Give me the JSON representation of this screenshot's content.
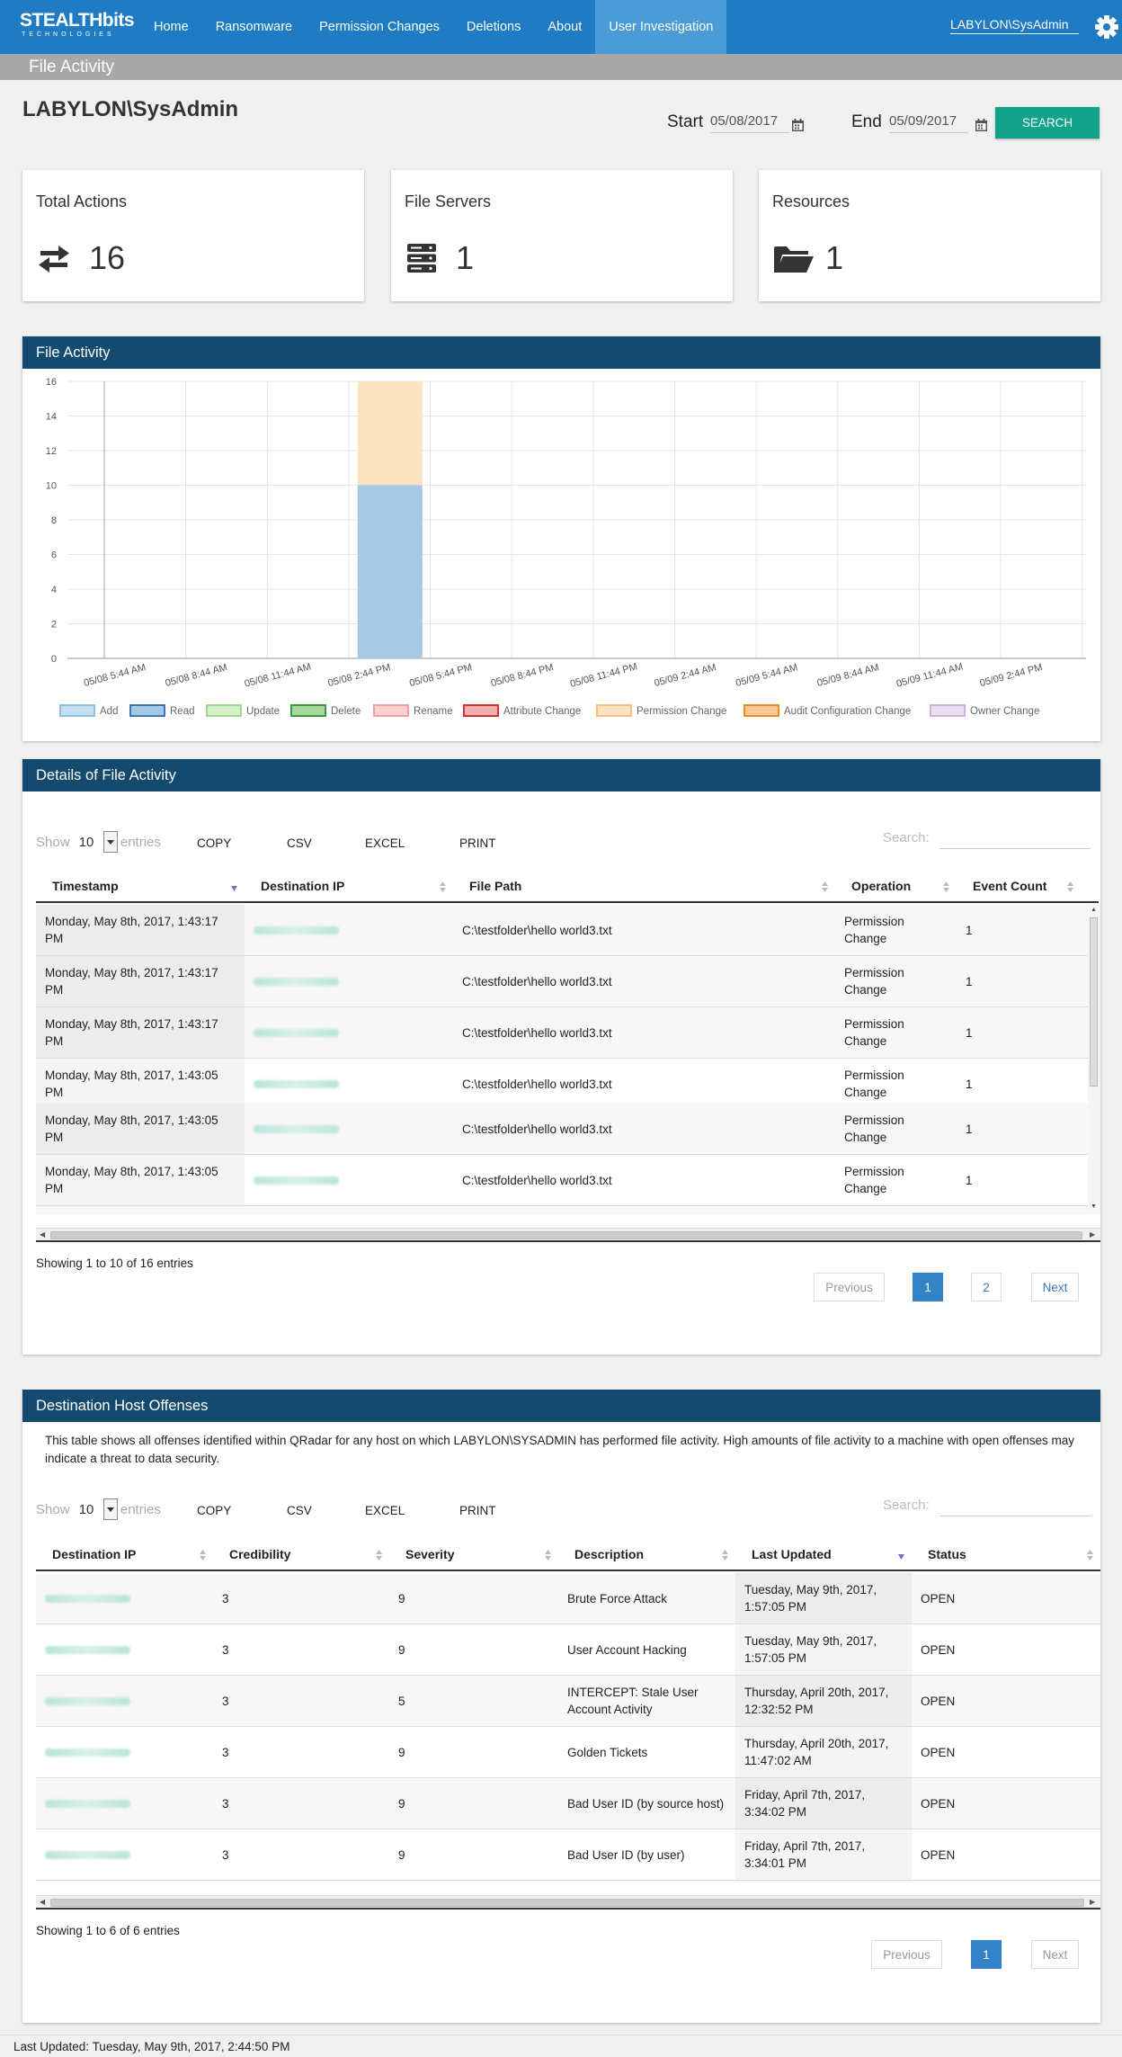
{
  "nav": {
    "logo_main": "STEALTHbits",
    "logo_sub": "TECHNOLOGIES",
    "items": [
      {
        "label": "Home"
      },
      {
        "label": "Ransomware"
      },
      {
        "label": "Permission Changes"
      },
      {
        "label": "Deletions"
      },
      {
        "label": "About"
      },
      {
        "label": "User Investigation",
        "active": true
      }
    ],
    "user": "LABYLON\\SysAdmin",
    "settings_icon": "gear-icon"
  },
  "subheader": {
    "title": "File Activity"
  },
  "header": {
    "user_title": "LABYLON\\SysAdmin",
    "start_label": "Start",
    "start_value": "05/08/2017",
    "end_label": "End",
    "end_value": "05/09/2017",
    "search_label": "SEARCH"
  },
  "stats": {
    "total_actions": {
      "label": "Total Actions",
      "value": "16",
      "icon": "exchange-icon"
    },
    "file_servers": {
      "label": "File Servers",
      "value": "1",
      "icon": "server-icon"
    },
    "resources": {
      "label": "Resources",
      "value": "1",
      "icon": "folder-open-icon"
    }
  },
  "file_activity_panel": {
    "title": "File Activity"
  },
  "chart_data": {
    "type": "bar",
    "stacked": true,
    "categories": [
      "05/08 5:44 AM",
      "05/08 8:44 AM",
      "05/08 11:44 AM",
      "05/08 2:44 PM",
      "05/08 5:44 PM",
      "05/08 8:44 PM",
      "05/08 11:44 PM",
      "05/09 2:44 AM",
      "05/09 5:44 AM",
      "05/09 8:44 AM",
      "05/09 11:44 AM",
      "05/09 2:44 PM"
    ],
    "series": [
      {
        "name": "Add",
        "color": "#c6dff0",
        "border": "#8fbfe0",
        "values": [
          0,
          0,
          0,
          0,
          0,
          0,
          0,
          0,
          0,
          0,
          0,
          0
        ]
      },
      {
        "name": "Read",
        "color": "#a6c8e2",
        "border": "#3a78b5",
        "values": [
          0,
          0,
          0,
          10,
          0,
          0,
          0,
          0,
          0,
          0,
          0,
          0
        ]
      },
      {
        "name": "Update",
        "color": "#d5f0c8",
        "border": "#9fd68a",
        "values": [
          0,
          0,
          0,
          0,
          0,
          0,
          0,
          0,
          0,
          0,
          0,
          0
        ]
      },
      {
        "name": "Delete",
        "color": "#a8d8a0",
        "border": "#3c9a3c",
        "values": [
          0,
          0,
          0,
          0,
          0,
          0,
          0,
          0,
          0,
          0,
          0,
          0
        ]
      },
      {
        "name": "Rename",
        "color": "#f8d0d0",
        "border": "#f0a0a0",
        "values": [
          0,
          0,
          0,
          0,
          0,
          0,
          0,
          0,
          0,
          0,
          0,
          0
        ]
      },
      {
        "name": "Attribute Change",
        "color": "#f0b0b0",
        "border": "#d43030",
        "values": [
          0,
          0,
          0,
          0,
          0,
          0,
          0,
          0,
          0,
          0,
          0,
          0
        ]
      },
      {
        "name": "Permission Change",
        "color": "#fbe2c0",
        "border": "#f5c080",
        "values": [
          0,
          0,
          0,
          6,
          0,
          0,
          0,
          0,
          0,
          0,
          0,
          0
        ]
      },
      {
        "name": "Audit Configuration Change",
        "color": "#f8c898",
        "border": "#ee8a20",
        "values": [
          0,
          0,
          0,
          0,
          0,
          0,
          0,
          0,
          0,
          0,
          0,
          0
        ]
      },
      {
        "name": "Owner Change",
        "color": "#ecdcf0",
        "border": "#cfb2dc",
        "values": [
          0,
          0,
          0,
          0,
          0,
          0,
          0,
          0,
          0,
          0,
          0,
          0
        ]
      }
    ],
    "yticks": [
      "0",
      "2",
      "4",
      "6",
      "8",
      "10",
      "12",
      "14",
      "16"
    ],
    "ylim": [
      0,
      16
    ],
    "grid": true,
    "legend_position": "bottom"
  },
  "details_panel": {
    "title": "Details of File Activity",
    "show_label": "Show",
    "show_value": "10",
    "entries_label": "entries",
    "tools": [
      "COPY",
      "CSV",
      "EXCEL",
      "PRINT"
    ],
    "search_label": "Search:",
    "columns": [
      "Timestamp",
      "Destination IP",
      "File Path",
      "Operation",
      "Event Count"
    ],
    "rows": [
      {
        "timestamp": "Monday, May 8th, 2017, 1:43:17 PM",
        "path": "C:\\testfolder\\hello world3.txt",
        "operation": "Permission Change",
        "count": "1"
      },
      {
        "timestamp": "Monday, May 8th, 2017, 1:43:17 PM",
        "path": "C:\\testfolder\\hello world3.txt",
        "operation": "Permission Change",
        "count": "1"
      },
      {
        "timestamp": "Monday, May 8th, 2017, 1:43:17 PM",
        "path": "C:\\testfolder\\hello world3.txt",
        "operation": "Permission Change",
        "count": "1"
      },
      {
        "timestamp": "Monday, May 8th, 2017, 1:43:05 PM",
        "path": "C:\\testfolder\\hello world3.txt",
        "operation": "Permission Change",
        "count": "1"
      },
      {
        "timestamp": "Monday, May 8th, 2017, 1:43:05 PM",
        "path": "C:\\testfolder\\hello world3.txt",
        "operation": "Permission Change",
        "count": "1"
      },
      {
        "timestamp": "Monday, May 8th, 2017, 1:43:05 PM",
        "path": "C:\\testfolder\\hello world3.txt",
        "operation": "Permission Change",
        "count": "1"
      }
    ],
    "showing_text": "Showing 1 to 10 of 16 entries",
    "pagination": {
      "previous": "Previous",
      "pages": [
        "1",
        "2"
      ],
      "next": "Next"
    }
  },
  "offenses_panel": {
    "title": "Destination Host Offenses",
    "description": "This table shows all offenses identified within QRadar for any host on which LABYLON\\SYSADMIN has performed file activity. High amounts of file activity to a machine with open offenses may indicate a threat to data security.",
    "show_label": "Show",
    "show_value": "10",
    "entries_label": "entries",
    "tools": [
      "COPY",
      "CSV",
      "EXCEL",
      "PRINT"
    ],
    "search_label": "Search:",
    "columns": [
      "Destination IP",
      "Credibility",
      "Severity",
      "Description",
      "Last Updated",
      "Status"
    ],
    "rows": [
      {
        "credibility": "3",
        "severity": "9",
        "description": "Brute Force Attack",
        "updated": "Tuesday, May 9th, 2017, 1:57:05 PM",
        "status": "OPEN"
      },
      {
        "credibility": "3",
        "severity": "9",
        "description": "User Account Hacking",
        "updated": "Tuesday, May 9th, 2017, 1:57:05 PM",
        "status": "OPEN"
      },
      {
        "credibility": "3",
        "severity": "5",
        "description": "INTERCEPT: Stale User Account Activity",
        "updated": "Thursday, April 20th, 2017, 12:32:52 PM",
        "status": "OPEN"
      },
      {
        "credibility": "3",
        "severity": "9",
        "description": "Golden Tickets",
        "updated": "Thursday, April 20th, 2017, 11:47:02 AM",
        "status": "OPEN"
      },
      {
        "credibility": "3",
        "severity": "9",
        "description": "Bad User ID (by source host)",
        "updated": "Friday, April 7th, 2017, 3:34:02 PM",
        "status": "OPEN"
      },
      {
        "credibility": "3",
        "severity": "9",
        "description": "Bad User ID (by user)",
        "updated": "Friday, April 7th, 2017, 3:34:01 PM",
        "status": "OPEN"
      }
    ],
    "showing_text": "Showing 1 to 6 of 6 entries",
    "pagination": {
      "previous": "Previous",
      "pages": [
        "1"
      ],
      "next": "Next"
    }
  },
  "footer": {
    "last_updated": "Last Updated: Tuesday, May 9th, 2017, 2:44:50 PM"
  }
}
